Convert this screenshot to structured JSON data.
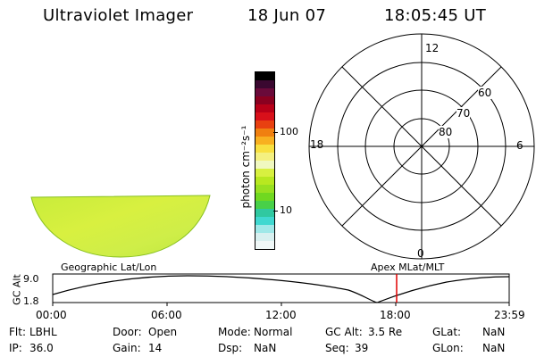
{
  "header": {
    "title": "Ultraviolet Imager",
    "date": "18 Jun 07",
    "time": "18:05:45 UT"
  },
  "colorbar": {
    "unit_label": "photon cm⁻²s⁻¹",
    "tick_100": "100",
    "tick_10": "10",
    "colors": [
      "#000000",
      "#3a0830",
      "#6a0a3a",
      "#8a0020",
      "#b80018",
      "#d8101a",
      "#e84010",
      "#f08010",
      "#f8b020",
      "#f8e040",
      "#f4f080",
      "#f0f8c0",
      "#d8f040",
      "#b8e820",
      "#98e020",
      "#70d820",
      "#48d048",
      "#30c8a0",
      "#40d8d0",
      "#a0e8e8",
      "#d8f0f0",
      "#f0f8f8"
    ]
  },
  "polar": {
    "labels": {
      "top": "12",
      "left": "18",
      "right": "6",
      "bottom": "0"
    },
    "rings": [
      "60",
      "70",
      "80"
    ]
  },
  "timeline": {
    "left_title": "Geographic Lat/Lon",
    "right_title": "Apex  MLat/MLT",
    "yaxis_label": "GC Alt",
    "ymax": "9.0",
    "ymin": "1.8",
    "ticks": [
      "00:00",
      "06:00",
      "12:00",
      "18:00",
      "23:59"
    ],
    "marker_color": "#e00000"
  },
  "status": {
    "flt_label": "Flt:",
    "flt_value": "LBHL",
    "door_label": "Door:",
    "door_value": "Open",
    "mode_label": "Mode:",
    "mode_value": "Normal",
    "gcalt_label": "GC Alt:",
    "gcalt_value": "3.5 Re",
    "glat_label": "GLat:",
    "glat_value": "NaN",
    "ip_label": "IP:",
    "ip_value": "36.0",
    "gain_label": "Gain:",
    "gain_value": "14",
    "dsp_label": "Dsp:",
    "dsp_value": "NaN",
    "seq_label": "Seq:",
    "seq_value": "39",
    "glon_label": "GLon:",
    "glon_value": "NaN"
  }
}
